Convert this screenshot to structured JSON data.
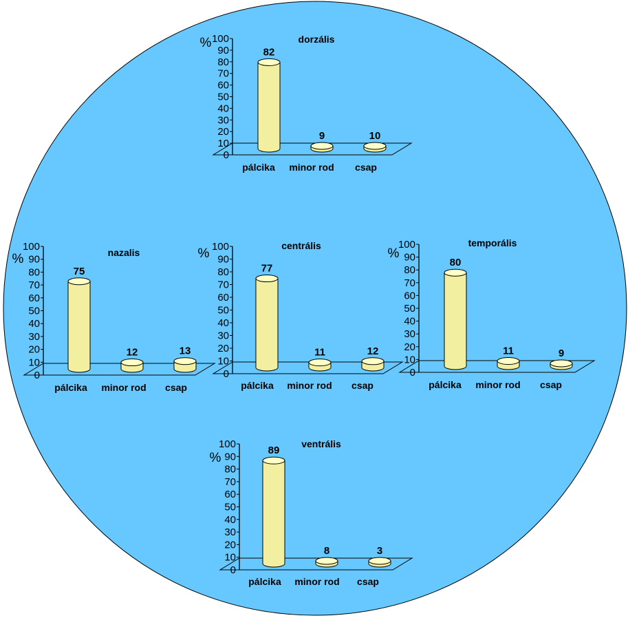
{
  "colors": {
    "background_disc": "#66c8ff",
    "bar_body": "#f2f0a0",
    "bar_top": "#ffffc8",
    "bar_outline": "#000000",
    "axis": "#000000"
  },
  "chart_data": [
    {
      "type": "bar",
      "title": "dorzális",
      "ylabel": "%",
      "ylim": [
        0,
        100
      ],
      "yticks": [
        "0",
        "10",
        "20",
        "30",
        "40",
        "50",
        "60",
        "70",
        "80",
        "90",
        "100"
      ],
      "categories": [
        "pálcika",
        "minor rod",
        "csap"
      ],
      "values": [
        82,
        9,
        10
      ],
      "value_labels": [
        "82",
        "9",
        "10"
      ]
    },
    {
      "type": "bar",
      "title": "nazalis",
      "ylabel": "%",
      "ylim": [
        0,
        100
      ],
      "yticks": [
        "0",
        "10",
        "20",
        "30",
        "40",
        "50",
        "60",
        "70",
        "80",
        "90",
        "100"
      ],
      "categories": [
        "pálcika",
        "minor rod",
        "csap"
      ],
      "values": [
        75,
        12,
        13
      ],
      "value_labels": [
        "75",
        "12",
        "13"
      ]
    },
    {
      "type": "bar",
      "title": "centrális",
      "ylabel": "%",
      "ylim": [
        0,
        100
      ],
      "yticks": [
        "0",
        "10",
        "20",
        "30",
        "40",
        "50",
        "60",
        "70",
        "80",
        "90",
        "100"
      ],
      "categories": [
        "pálcika",
        "minor rod",
        "csap"
      ],
      "values": [
        77,
        11,
        12
      ],
      "value_labels": [
        "77",
        "11",
        "12"
      ]
    },
    {
      "type": "bar",
      "title": "temporális",
      "ylabel": "%",
      "ylim": [
        0,
        100
      ],
      "yticks": [
        "0",
        "10",
        "20",
        "30",
        "40",
        "50",
        "60",
        "70",
        "80",
        "90",
        "100"
      ],
      "categories": [
        "pálcika",
        "minor rod",
        "csap"
      ],
      "values": [
        80,
        11,
        9
      ],
      "value_labels": [
        "80",
        "11",
        "9"
      ]
    },
    {
      "type": "bar",
      "title": "ventrális",
      "ylabel": "%",
      "ylim": [
        0,
        100
      ],
      "yticks": [
        "0",
        "10",
        "20",
        "30",
        "40",
        "50",
        "60",
        "70",
        "80",
        "90",
        "100"
      ],
      "categories": [
        "pálcika",
        "minor rod",
        "csap"
      ],
      "values": [
        89,
        8,
        3
      ],
      "value_labels": [
        "89",
        "8",
        "3"
      ]
    }
  ]
}
